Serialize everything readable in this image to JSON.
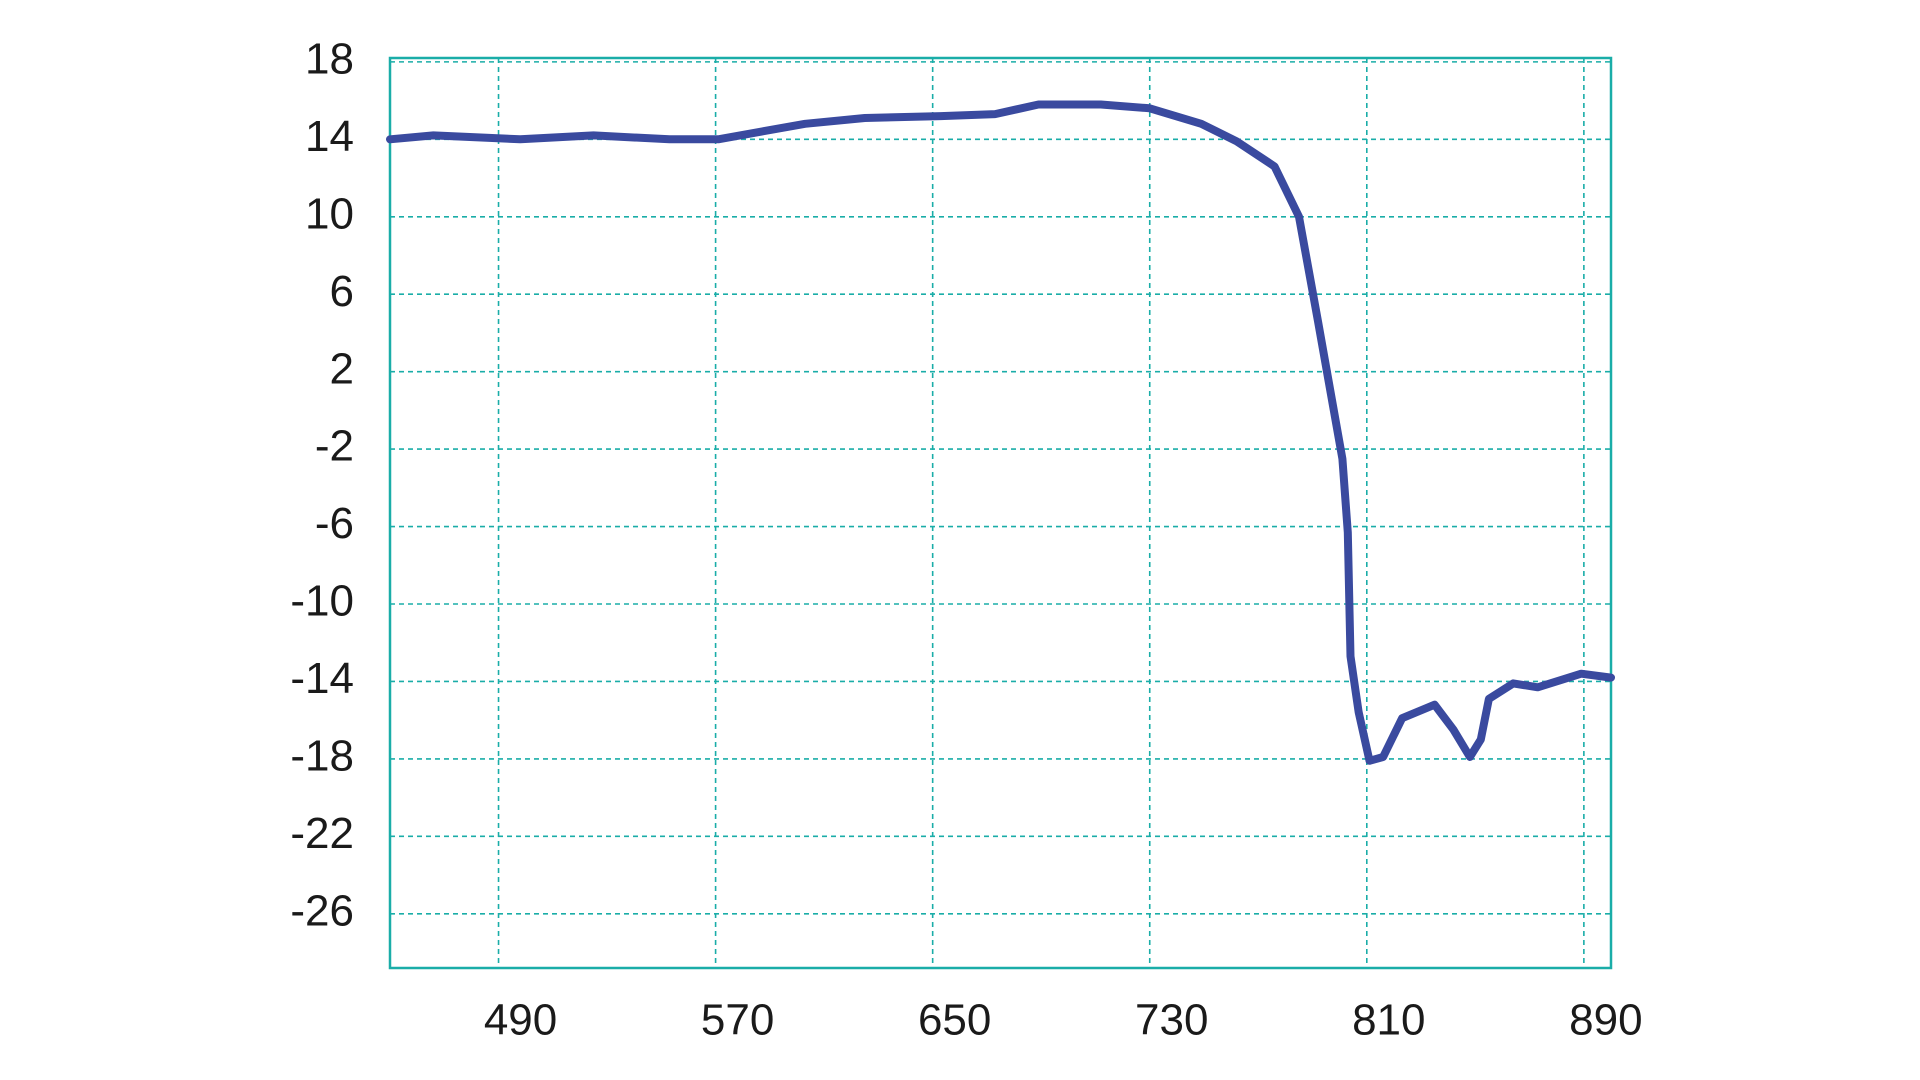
{
  "chart_data": {
    "type": "line",
    "x": [
      450,
      466,
      498,
      525,
      553,
      571,
      603,
      625,
      653,
      673,
      689,
      712,
      730,
      749,
      762,
      776,
      785,
      792,
      801,
      803,
      804,
      807,
      811,
      816,
      823,
      835,
      842,
      848,
      852,
      855,
      864,
      873,
      889,
      900
    ],
    "series": [
      {
        "color": "#3a4a9f",
        "values": [
          14.0,
          14.2,
          14.0,
          14.2,
          14.0,
          14.0,
          14.8,
          15.1,
          15.2,
          15.3,
          15.8,
          15.8,
          15.6,
          14.8,
          13.9,
          12.6,
          10.0,
          4.6,
          -2.5,
          -6.3,
          -12.7,
          -15.6,
          -18.1,
          -17.9,
          -15.9,
          -15.2,
          -16.5,
          -17.9,
          -17.0,
          -14.9,
          -14.1,
          -14.3,
          -13.6,
          -13.8
        ]
      }
    ],
    "xlim": [
      450,
      900
    ],
    "xticks": [
      490,
      570,
      650,
      730,
      810,
      890
    ],
    "ylim": [
      -28.8,
      18.2
    ],
    "yticks": [
      18,
      14,
      10,
      6,
      2,
      -2,
      -6,
      -10,
      -14,
      -18,
      -22,
      -26
    ],
    "grid": true,
    "grid_color": "#1aada8"
  }
}
